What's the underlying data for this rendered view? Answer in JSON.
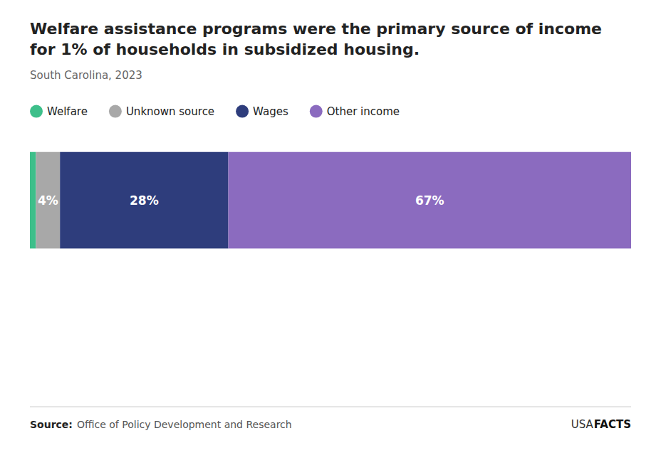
{
  "chart_data": {
    "type": "bar",
    "orientation": "horizontal",
    "stacked": true,
    "title": "Welfare assistance programs were the primary source of income for 1% of households in subsidized housing.",
    "subtitle": "South Carolina, 2023",
    "categories": [
      null
    ],
    "series": [
      {
        "name": "Welfare",
        "color": "#3dbf8a",
        "values": [
          1
        ]
      },
      {
        "name": "Unknown source",
        "color": "#a8a8a8",
        "values": [
          4
        ],
        "value_labels": [
          "4%"
        ]
      },
      {
        "name": "Wages",
        "color": "#2e3d7c",
        "values": [
          28
        ],
        "value_labels": [
          "28%"
        ]
      },
      {
        "name": "Other income",
        "color": "#8b6bbf",
        "values": [
          67
        ],
        "value_labels": [
          "67%"
        ]
      }
    ],
    "xlim": [
      0,
      100
    ],
    "data_labels": true,
    "tick_labels": false,
    "grid": false,
    "annotations": [
      "Source:",
      "Office of Policy Development and Research",
      "USA",
      "FACTS"
    ]
  }
}
